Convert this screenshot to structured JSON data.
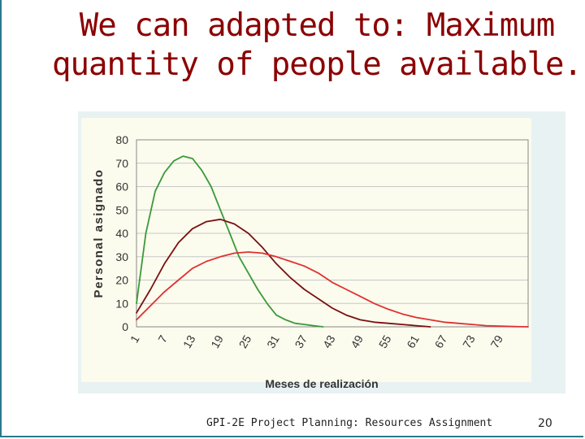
{
  "slide": {
    "title_lines": [
      "We can adapted to: Maximum",
      "quantity of people available."
    ],
    "footer": "GPI-2E Project Planning: Resources Assignment",
    "page_number": "20"
  },
  "chart_data": {
    "type": "line",
    "ylabel": "Personal asignado",
    "xlabel": "Meses de realización",
    "ylim": [
      0,
      80
    ],
    "xlim": [
      1,
      85
    ],
    "y_ticks": [
      0,
      10,
      20,
      30,
      40,
      50,
      60,
      70,
      80
    ],
    "x_ticks": [
      1,
      7,
      13,
      19,
      25,
      31,
      37,
      43,
      49,
      55,
      61,
      67,
      73,
      79
    ],
    "grid": true,
    "series": [
      {
        "color": "#3a9a3a",
        "x": [
          1,
          3,
          5,
          7,
          9,
          11,
          13,
          15,
          17,
          19,
          21,
          23,
          25,
          27,
          29,
          31,
          33,
          35,
          37,
          39,
          41
        ],
        "y": [
          10,
          40,
          58,
          66,
          71,
          73,
          72,
          67,
          60,
          50,
          40,
          30,
          23,
          16,
          10,
          5,
          3,
          1.5,
          1,
          0.5,
          0
        ]
      },
      {
        "color": "#7a1010",
        "x": [
          1,
          4,
          7,
          10,
          13,
          16,
          19,
          22,
          25,
          28,
          31,
          34,
          37,
          40,
          43,
          46,
          49,
          52,
          55,
          58,
          61,
          64
        ],
        "y": [
          6,
          16,
          27,
          36,
          42,
          45,
          46,
          44,
          40,
          34,
          27,
          21,
          16,
          12,
          8,
          5,
          3,
          2,
          1.5,
          1,
          0.5,
          0
        ]
      },
      {
        "color": "#e03030",
        "x": [
          1,
          4,
          7,
          10,
          13,
          16,
          19,
          22,
          25,
          28,
          31,
          34,
          37,
          40,
          43,
          46,
          49,
          52,
          55,
          58,
          61,
          64,
          67,
          70,
          73,
          76,
          79,
          82,
          85
        ],
        "y": [
          3,
          9,
          15,
          20,
          25,
          28,
          30,
          31.5,
          32,
          31.5,
          30,
          28,
          26,
          23,
          19,
          16,
          13,
          10,
          7.5,
          5.5,
          4,
          3,
          2,
          1.5,
          1,
          0.5,
          0.3,
          0.1,
          0
        ]
      }
    ]
  }
}
